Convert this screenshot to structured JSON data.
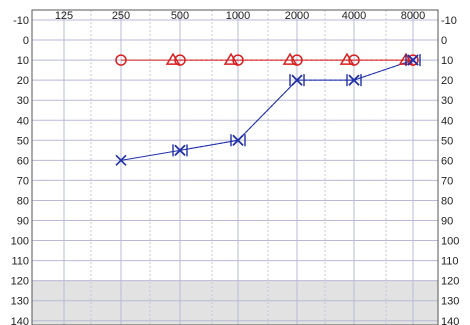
{
  "chart_data": {
    "type": "line",
    "title": "",
    "xlabel": "",
    "ylabel": "",
    "x_ticks": [
      "125",
      "250",
      "500",
      "1000",
      "2000",
      "4000",
      "8000"
    ],
    "y_ticks": [
      "-10",
      "0",
      "10",
      "20",
      "30",
      "40",
      "50",
      "60",
      "70",
      "80",
      "90",
      "100",
      "110",
      "120",
      "130",
      "140"
    ],
    "ylim": [
      -10,
      140
    ],
    "y_inverted": true,
    "grid": true,
    "shaded_region": [
      120,
      140
    ],
    "series": [
      {
        "symbol": "circle",
        "color": "#d91f1f",
        "line": "solid",
        "points": [
          [
            250,
            10
          ],
          [
            500,
            10
          ],
          [
            1000,
            10
          ],
          [
            2000,
            10
          ],
          [
            4000,
            10
          ],
          [
            8000,
            10
          ]
        ]
      },
      {
        "symbol": "triangle",
        "color": "#d91f1f",
        "line": "dashed",
        "points": [
          [
            500,
            10
          ],
          [
            1000,
            10
          ],
          [
            2000,
            10
          ],
          [
            4000,
            10
          ],
          [
            8000,
            10
          ]
        ]
      },
      {
        "symbol": "cross",
        "color": "#1f2fa8",
        "line": "solid",
        "points": [
          [
            250,
            60
          ],
          [
            500,
            55
          ],
          [
            1000,
            50
          ],
          [
            2000,
            20
          ],
          [
            4000,
            20
          ],
          [
            8000,
            10
          ]
        ]
      },
      {
        "symbol": "bracket-cross",
        "color": "#1f2fa8",
        "line": "dashed",
        "points": [
          [
            500,
            55
          ],
          [
            1000,
            50
          ],
          [
            2000,
            20
          ],
          [
            4000,
            20
          ],
          [
            8000,
            10
          ]
        ]
      }
    ]
  }
}
